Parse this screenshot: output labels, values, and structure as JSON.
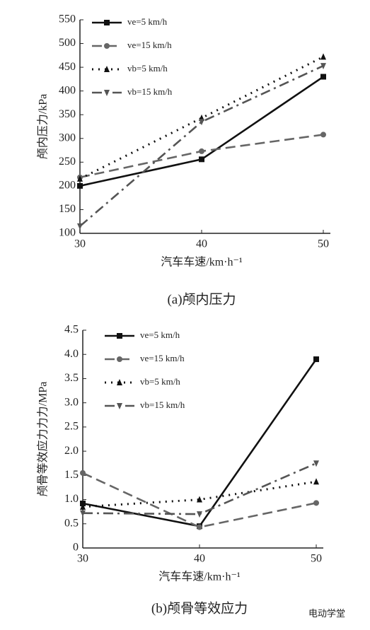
{
  "chart_data": [
    {
      "type": "line",
      "ylabel": "颅内压力/kPa",
      "xlabel": "汽车车速/km·h⁻¹",
      "caption": "(a)颅内压力",
      "x": [
        30,
        40,
        50
      ],
      "xlim": [
        30,
        50
      ],
      "xticks": [
        30,
        40,
        50
      ],
      "ylim": [
        100,
        550
      ],
      "yticks": [
        100,
        150,
        200,
        250,
        300,
        350,
        400,
        450,
        500,
        550
      ],
      "series": [
        {
          "name": "ve=5 km/h",
          "color": "#111111",
          "dash": "solid",
          "marker": "square",
          "values": [
            200,
            256,
            430
          ]
        },
        {
          "name": "ve=15 km/h",
          "color": "#666666",
          "dash": "dashed",
          "marker": "circle",
          "values": [
            218,
            273,
            308
          ]
        },
        {
          "name": "vb=5 km/h",
          "color": "#111111",
          "dash": "dotted",
          "marker": "triangle",
          "values": [
            215,
            343,
            472
          ]
        },
        {
          "name": "vb=15 km/h",
          "color": "#555555",
          "dash": "dashdot",
          "marker": "triangle-down",
          "values": [
            115,
            335,
            453
          ]
        }
      ]
    },
    {
      "type": "line",
      "ylabel": "颅骨等效应力力力/MPa",
      "xlabel": "汽车车速/km·h⁻¹",
      "caption": "(b)颅骨等效应力",
      "x": [
        30,
        40,
        50
      ],
      "xlim": [
        30,
        50
      ],
      "xticks": [
        30,
        40,
        50
      ],
      "ylim": [
        0,
        4.5
      ],
      "yticks": [
        0,
        {
          "value": 0.5,
          "label": "0.5"
        },
        {
          "value": 1,
          "label": "1.0"
        },
        {
          "value": 1.5,
          "label": "1.5"
        },
        {
          "value": 2,
          "label": "2.0"
        },
        {
          "value": 2.5,
          "label": "2.5"
        },
        {
          "value": 3,
          "label": "3.0"
        },
        {
          "value": 3.5,
          "label": "3.5"
        },
        {
          "value": 4,
          "label": "4.0"
        },
        {
          "value": 4.5,
          "label": "4.5"
        }
      ],
      "series": [
        {
          "name": "ve=5 km/h",
          "color": "#111111",
          "dash": "solid",
          "marker": "square",
          "values": [
            0.92,
            0.45,
            3.9
          ]
        },
        {
          "name": "ve=15 km/h",
          "color": "#666666",
          "dash": "dashed",
          "marker": "circle",
          "values": [
            1.55,
            0.43,
            0.93
          ]
        },
        {
          "name": "vb=5 km/h",
          "color": "#111111",
          "dash": "dotted",
          "marker": "triangle",
          "values": [
            0.85,
            1.0,
            1.37
          ]
        },
        {
          "name": "vb=15 km/h",
          "color": "#555555",
          "dash": "dashdot",
          "marker": "triangle-down",
          "values": [
            0.72,
            0.7,
            1.75
          ]
        }
      ]
    }
  ],
  "watermark": "电动学堂"
}
